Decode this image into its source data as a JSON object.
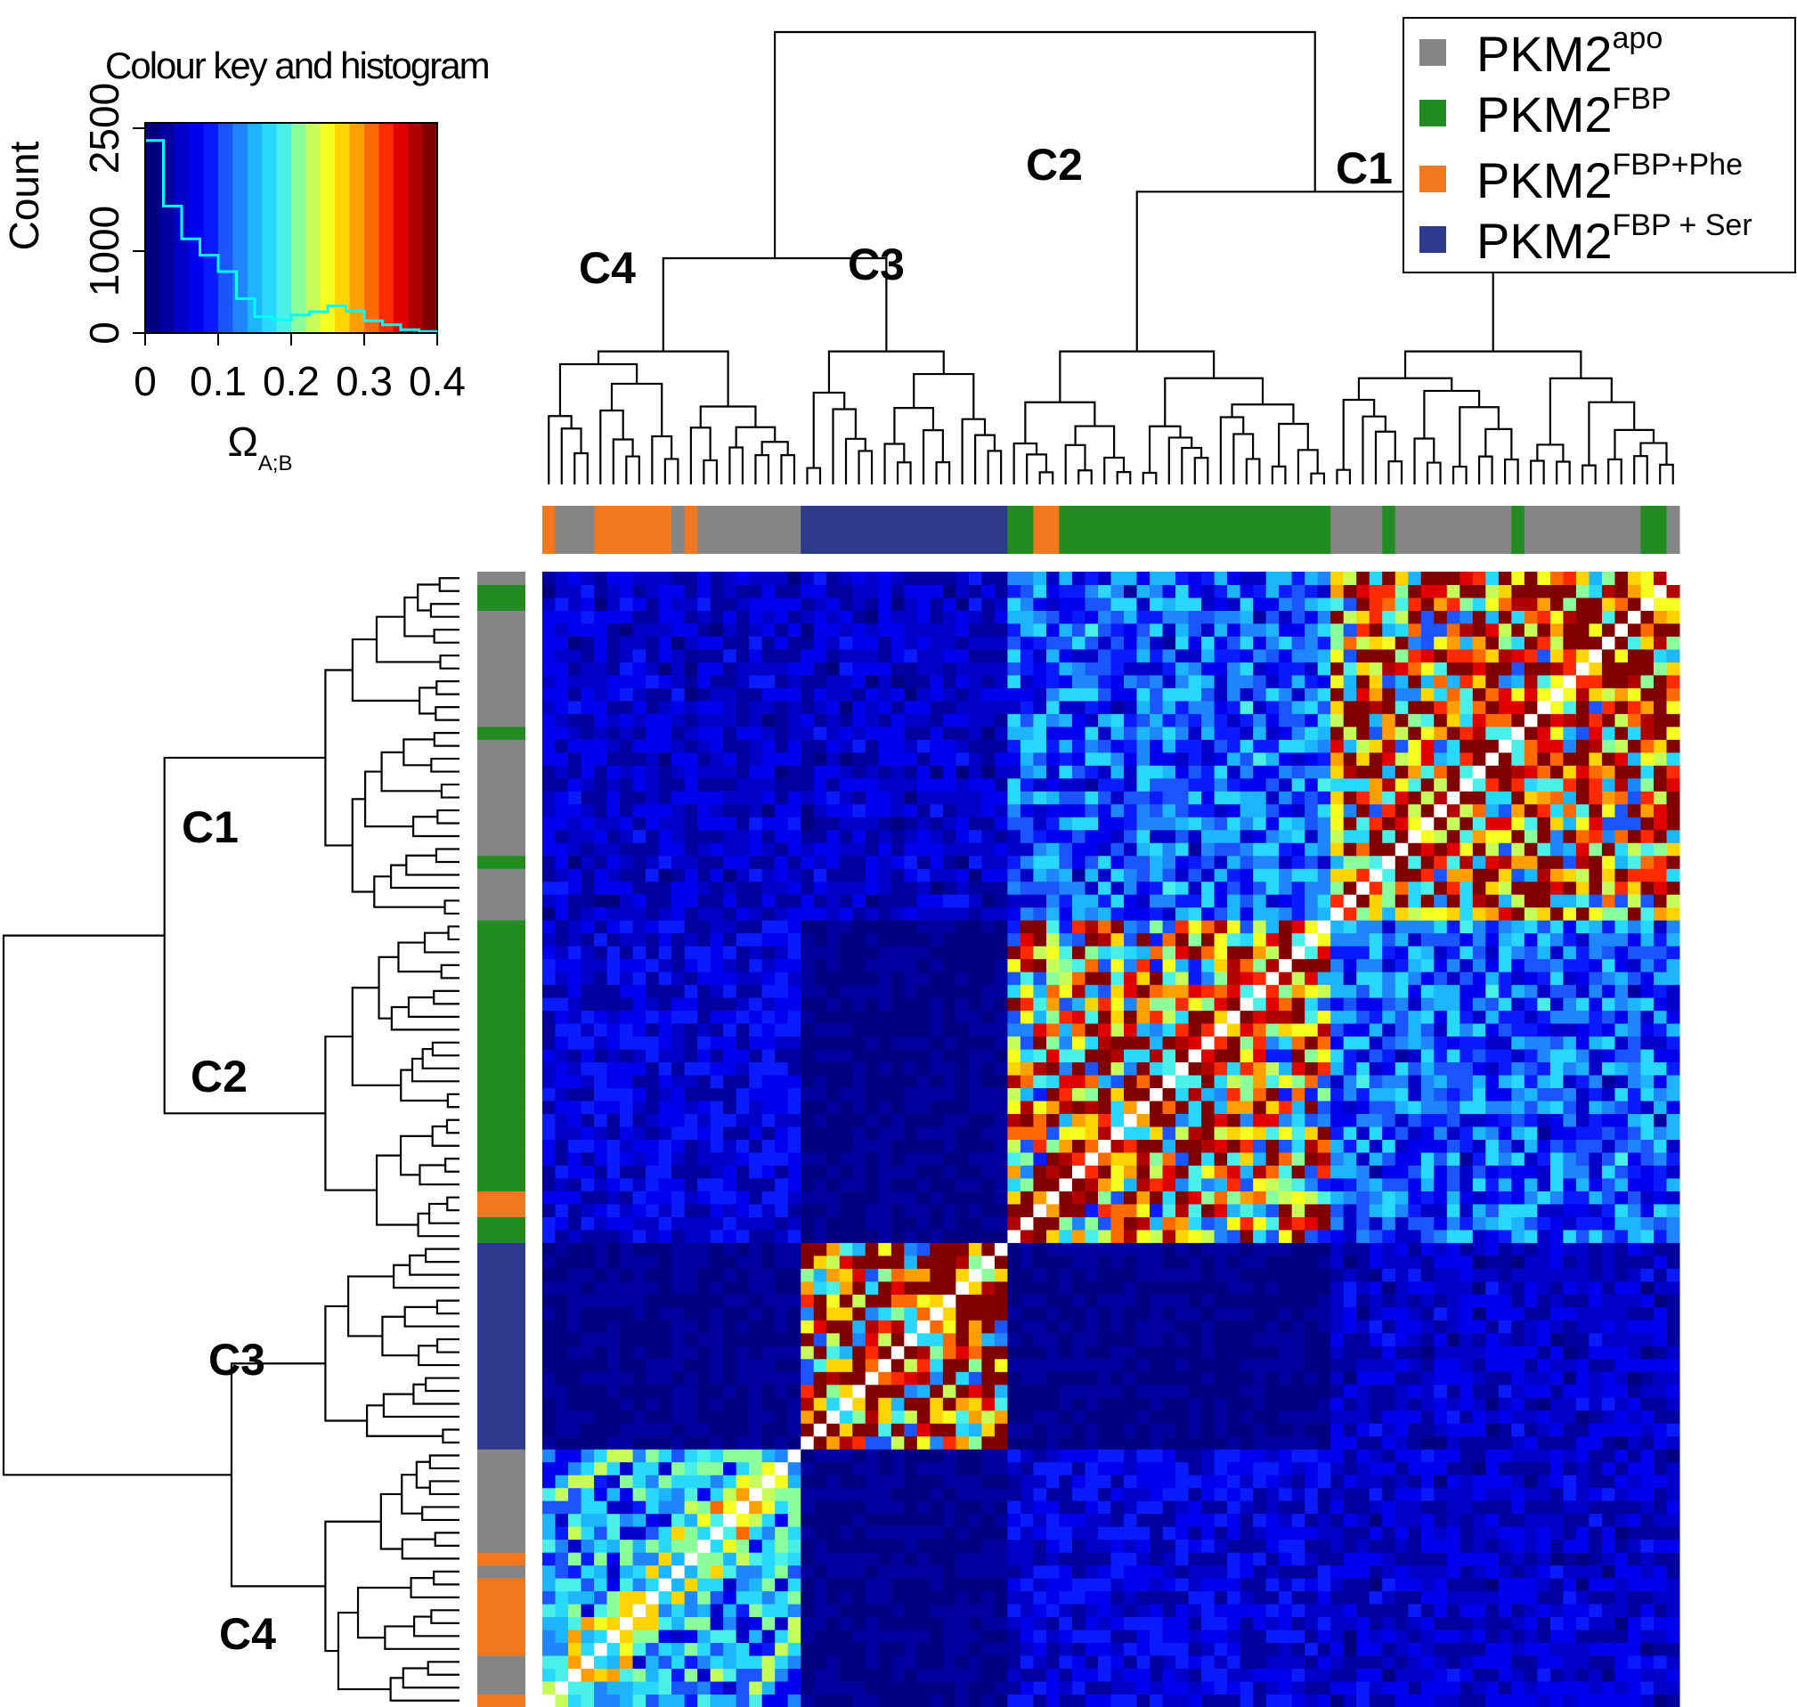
{
  "chart_data": {
    "type": "heatmap",
    "color_key": {
      "title": "Colour key and histogram",
      "ylabel": "Count",
      "xlabel": "Ω",
      "xlabel_sub": "A;B",
      "x_ticks": [
        "0",
        "0.1",
        "0.2",
        "0.3",
        "0.4"
      ],
      "y_ticks": [
        "0",
        "1000",
        "2500"
      ],
      "xlim": [
        0,
        0.4
      ],
      "ylim": [
        0,
        2500
      ],
      "colors": [
        "#000080",
        "#00009f",
        "#0000c8",
        "#0000ee",
        "#0a1bff",
        "#1a55ff",
        "#1f86ff",
        "#1db5ff",
        "#29d8ff",
        "#4af0e8",
        "#8aff9a",
        "#c6ff5a",
        "#f5ff20",
        "#ffd400",
        "#ffa000",
        "#ff6a00",
        "#ff2a00",
        "#e00000",
        "#b00000",
        "#800000"
      ],
      "histogram": {
        "bin_edges": [
          0,
          0.025,
          0.05,
          0.075,
          0.1,
          0.125,
          0.15,
          0.175,
          0.2,
          0.225,
          0.25,
          0.275,
          0.3,
          0.325,
          0.35,
          0.375,
          0.4
        ],
        "counts": [
          2350,
          1550,
          1150,
          950,
          750,
          420,
          200,
          160,
          220,
          260,
          330,
          270,
          150,
          100,
          40,
          20
        ]
      }
    },
    "clusters": [
      "C1",
      "C2",
      "C3",
      "C4"
    ],
    "legend": [
      {
        "base": "PKM2",
        "sup": "apo",
        "color": "#858585"
      },
      {
        "base": "PKM2",
        "sup": "FBP",
        "color": "#228b22"
      },
      {
        "base": "PKM2",
        "sup": "FBP+Phe",
        "color": "#f07820"
      },
      {
        "base": "PKM2",
        "sup": "FBP + Ser",
        "color": "#2e3a8c"
      }
    ],
    "n_samples": 88,
    "cluster_blocks": [
      {
        "name": "C4",
        "start": 0,
        "end": 20
      },
      {
        "name": "C3",
        "start": 20,
        "end": 36
      },
      {
        "name": "C2",
        "start": 36,
        "end": 61
      },
      {
        "name": "C1",
        "start": 61,
        "end": 88
      }
    ],
    "sample_groups": [
      {
        "group": "PKM2FBP+Phe",
        "count": 1
      },
      {
        "group": "PKM2apo",
        "count": 3
      },
      {
        "group": "PKM2FBP+Phe",
        "count": 6
      },
      {
        "group": "PKM2apo",
        "count": 1
      },
      {
        "group": "PKM2FBP+Phe",
        "count": 1
      },
      {
        "group": "PKM2apo",
        "count": 8
      },
      {
        "group": "PKM2FBP + Ser",
        "count": 16
      },
      {
        "group": "PKM2FBP",
        "count": 2
      },
      {
        "group": "PKM2FBP+Phe",
        "count": 2
      },
      {
        "group": "PKM2FBP",
        "count": 21
      },
      {
        "group": "PKM2apo",
        "count": 4
      },
      {
        "group": "PKM2FBP",
        "count": 1
      },
      {
        "group": "PKM2apo",
        "count": 9
      },
      {
        "group": "PKM2FBP",
        "count": 1
      },
      {
        "group": "PKM2apo",
        "count": 9
      },
      {
        "group": "PKM2FBP",
        "count": 2
      },
      {
        "group": "PKM2apo",
        "count": 1
      }
    ],
    "block_similarity": {
      "order": [
        "C4",
        "C3",
        "C2",
        "C1"
      ],
      "values": [
        [
          0.14,
          0.02,
          0.06,
          0.05
        ],
        [
          0.02,
          0.3,
          0.02,
          0.05
        ],
        [
          0.06,
          0.02,
          0.26,
          0.11
        ],
        [
          0.05,
          0.05,
          0.11,
          0.3
        ]
      ]
    },
    "grid": false
  }
}
